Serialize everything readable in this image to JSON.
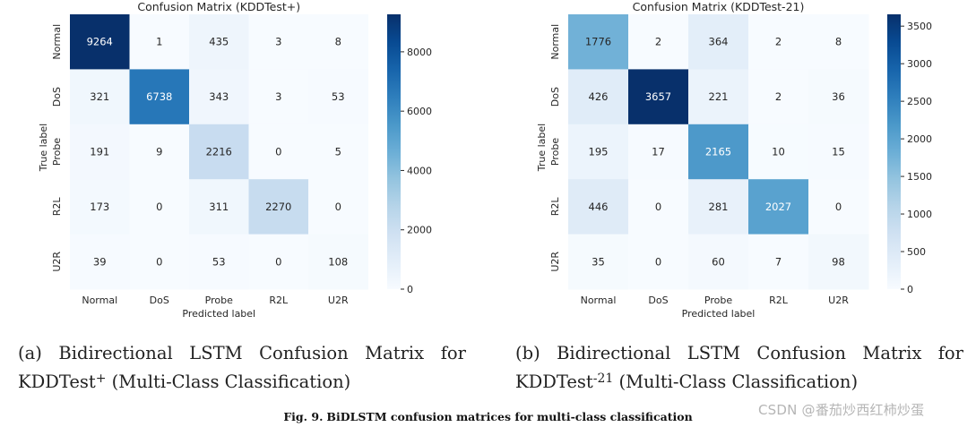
{
  "chart_data": [
    {
      "type": "heatmap",
      "title": "Confusion Matrix (KDDTest+)",
      "xlabel": "Predicted label",
      "ylabel": "True label",
      "categories": [
        "Normal",
        "DoS",
        "Probe",
        "R2L",
        "U2R"
      ],
      "values": [
        [
          9264,
          1,
          435,
          3,
          8
        ],
        [
          321,
          6738,
          343,
          3,
          53
        ],
        [
          191,
          9,
          2216,
          0,
          5
        ],
        [
          173,
          0,
          311,
          2270,
          0
        ],
        [
          39,
          0,
          53,
          0,
          108
        ]
      ],
      "colorbar_ticks": [
        0,
        2000,
        4000,
        6000,
        8000
      ],
      "colorbar_ticks_label": [
        "0",
        "2000",
        "4000",
        "6000",
        "8000"
      ],
      "vmin": 0,
      "vmax": 9264
    },
    {
      "type": "heatmap",
      "title": "Confusion Matrix (KDDTest-21)",
      "xlabel": "Predicted label",
      "ylabel": "True label",
      "categories": [
        "Normal",
        "DoS",
        "Probe",
        "R2L",
        "U2R"
      ],
      "values": [
        [
          1776,
          2,
          364,
          2,
          8
        ],
        [
          426,
          3657,
          221,
          2,
          36
        ],
        [
          195,
          17,
          2165,
          10,
          15
        ],
        [
          446,
          0,
          281,
          2027,
          0
        ],
        [
          35,
          0,
          60,
          7,
          98
        ]
      ],
      "colorbar_ticks": [
        0,
        500,
        1000,
        1500,
        2000,
        2500,
        3000,
        3500
      ],
      "colorbar_ticks_label": [
        "0",
        "500",
        "1000",
        "1500",
        "2000",
        "2500",
        "3000",
        "3500"
      ],
      "vmin": 0,
      "vmax": 3657
    }
  ],
  "subcaptions": {
    "a": {
      "label": "(a)",
      "text_main": "Bidirectional LSTM Confusion Matrix for KDDTest",
      "sup": "+",
      "text_end": " (Multi-Class Classification)"
    },
    "b": {
      "label": "(b)",
      "text_main": "Bidirectional LSTM Confusion Matrix for KDDTest",
      "sup": "-21",
      "text_end": " (Multi-Class Classification)"
    }
  },
  "figure_caption": {
    "label": "Fig. 9.",
    "text": "BiDLSTM confusion matrices for multi-class classification"
  },
  "watermark": "CSDN @番茄炒西红柿炒蛋",
  "colors": {
    "scale_low": "#f7fbff",
    "scale_high": "#08306b",
    "dark_text": "#262626",
    "light_text": "#ffffff"
  }
}
